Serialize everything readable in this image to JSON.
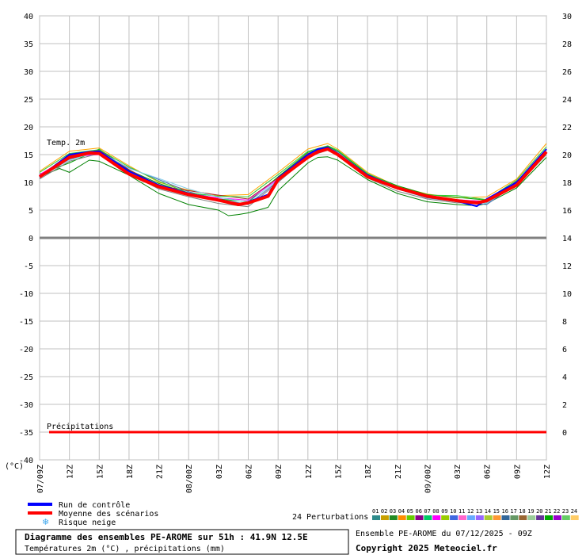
{
  "chart_data": {
    "type": "line",
    "y_left": {
      "min": -40,
      "max": 40,
      "step": 5
    },
    "y_right": {
      "min": 0,
      "max": 30,
      "step": 2,
      "note": "precipitation scale (mm)"
    },
    "y_unit_label": "(°C)",
    "grid": true,
    "x_ticks": [
      "07/09Z",
      "12Z",
      "15Z",
      "18Z",
      "21Z",
      "08/00Z",
      "03Z",
      "06Z",
      "09Z",
      "12Z",
      "15Z",
      "18Z",
      "21Z",
      "09/00Z",
      "03Z",
      "06Z",
      "09Z",
      "12Z"
    ],
    "x_hours": [
      0,
      3,
      6,
      9,
      12,
      15,
      18,
      21,
      24,
      27,
      30,
      33,
      36,
      39,
      42,
      45,
      48,
      51
    ],
    "temp_label": "Temp. 2m",
    "precip_label": "Précipitations",
    "series": [
      {
        "name": "Moyenne des scénarios",
        "color": "#ff0000",
        "x": [
          0,
          3,
          5,
          6,
          9,
          12,
          15,
          18,
          20,
          21,
          23,
          24,
          27,
          28,
          29,
          30,
          33,
          36,
          39,
          42,
          44,
          45,
          48,
          51
        ],
        "y": [
          11,
          14.5,
          15.3,
          15.2,
          11.5,
          9.2,
          7.8,
          6.8,
          6.0,
          6.3,
          7.5,
          10.5,
          14.5,
          15.5,
          16.0,
          15.0,
          11.0,
          9.0,
          7.5,
          6.7,
          6.3,
          6.7,
          9.5,
          15.5
        ]
      },
      {
        "name": "Run de contrôle",
        "color": "#0000ff",
        "x": [
          0,
          3,
          5,
          6,
          9,
          12,
          15,
          18,
          20,
          21,
          23,
          24,
          27,
          28,
          29,
          30,
          33,
          36,
          39,
          42,
          44,
          45,
          48,
          51
        ],
        "y": [
          11,
          15.0,
          15.5,
          15.6,
          12.0,
          9.5,
          8.0,
          6.9,
          6.0,
          6.5,
          7.8,
          10.8,
          15.0,
          16.0,
          16.3,
          15.2,
          11.3,
          9.1,
          7.6,
          6.6,
          5.7,
          7.0,
          10.0,
          16.0
        ]
      },
      {
        "name": "",
        "color": "#008000",
        "x": [
          0,
          2,
          3,
          5,
          6,
          9,
          12,
          15,
          18,
          19,
          20,
          21,
          23,
          24,
          27,
          28,
          29,
          30,
          33,
          36,
          39,
          42,
          44,
          45,
          48,
          51
        ],
        "y": [
          11,
          12.5,
          11.8,
          14.0,
          13.8,
          11.3,
          8.0,
          6.0,
          5.0,
          4.0,
          4.2,
          4.5,
          5.5,
          8.5,
          13.5,
          14.5,
          14.6,
          14.0,
          10.5,
          8.0,
          6.5,
          6.0,
          5.8,
          6.2,
          9.0,
          14.5
        ]
      },
      {
        "name": "",
        "color": "#ffa500",
        "x": [
          0,
          3,
          6,
          9,
          12,
          15,
          18,
          21,
          24,
          27,
          29,
          30,
          33,
          36,
          39,
          42,
          45,
          48,
          51
        ],
        "y": [
          12,
          15.6,
          16.2,
          13.0,
          10.0,
          8.6,
          7.6,
          7.8,
          11.8,
          16.0,
          17.0,
          16.0,
          11.8,
          9.3,
          7.9,
          7.2,
          7.4,
          10.6,
          17.0
        ]
      },
      {
        "name": "",
        "color": "#00a000",
        "x": [
          0,
          3,
          6,
          9,
          12,
          15,
          18,
          21,
          24,
          27,
          29,
          30,
          33,
          36,
          39,
          42,
          45,
          48,
          51
        ],
        "y": [
          11.5,
          13.5,
          16.0,
          12.2,
          9.8,
          8.0,
          7.0,
          6.5,
          11.0,
          15.4,
          16.5,
          15.6,
          11.5,
          9.4,
          7.8,
          7.3,
          6.8,
          10.0,
          16.0
        ]
      },
      {
        "name": "",
        "color": "#4a6fb5",
        "x": [
          0,
          3,
          6,
          9,
          12,
          15,
          18,
          21,
          24,
          27,
          29,
          30,
          33,
          36,
          39,
          42,
          45,
          48,
          51
        ],
        "y": [
          10.8,
          14.2,
          15.4,
          12.6,
          10.5,
          8.3,
          7.0,
          6.0,
          10.2,
          14.8,
          16.2,
          15.5,
          11.2,
          8.8,
          7.2,
          6.5,
          6.0,
          9.8,
          15.8
        ]
      },
      {
        "name": "",
        "color": "#a52a2a",
        "x": [
          0,
          3,
          6,
          9,
          12,
          15,
          18,
          21,
          24,
          27,
          29,
          30,
          33,
          36,
          39,
          42,
          45,
          48,
          51
        ],
        "y": [
          11.2,
          14.8,
          15.8,
          12.3,
          9.4,
          8.5,
          7.7,
          7.0,
          10.8,
          15.2,
          16.4,
          15.0,
          11.4,
          9.0,
          7.5,
          6.8,
          6.6,
          10.2,
          15.4
        ]
      },
      {
        "name": "",
        "color": "#ff00ff",
        "x": [
          0,
          3,
          6,
          9,
          12,
          15,
          18,
          21,
          24,
          27,
          29,
          30,
          33,
          36,
          39,
          42,
          45,
          48,
          51
        ],
        "y": [
          11.4,
          14.6,
          15.0,
          11.8,
          9.0,
          7.9,
          7.2,
          6.8,
          10.6,
          15.0,
          16.0,
          15.3,
          11.0,
          8.9,
          7.3,
          6.9,
          6.5,
          9.6,
          15.6
        ]
      },
      {
        "name": "",
        "color": "#808080",
        "x": [
          0,
          3,
          6,
          9,
          12,
          15,
          18,
          21,
          24,
          27,
          29,
          30,
          33,
          36,
          39,
          42,
          45,
          48,
          51
        ],
        "y": [
          10.6,
          13.8,
          15.2,
          11.6,
          8.8,
          7.4,
          6.2,
          5.6,
          10.0,
          14.6,
          15.8,
          14.8,
          10.8,
          8.4,
          7.0,
          6.3,
          6.4,
          9.4,
          15.0
        ]
      },
      {
        "name": "",
        "color": "#32cd32",
        "x": [
          0,
          3,
          6,
          9,
          12,
          15,
          18,
          21,
          24,
          27,
          29,
          30,
          33,
          36,
          39,
          42,
          45,
          48,
          51
        ],
        "y": [
          11.8,
          15.2,
          15.9,
          12.8,
          10.2,
          8.1,
          7.5,
          7.4,
          11.4,
          15.6,
          16.6,
          15.8,
          11.6,
          9.2,
          7.7,
          7.6,
          6.9,
          10.4,
          16.4
        ]
      },
      {
        "name": "",
        "color": "#87ceeb",
        "x": [
          0,
          3,
          6,
          9,
          12,
          15,
          18,
          21,
          24,
          27,
          29,
          30,
          33,
          36,
          39,
          42,
          45,
          48,
          51
        ],
        "y": [
          11.0,
          14.0,
          15.6,
          12.5,
          10.7,
          8.8,
          7.3,
          6.4,
          10.4,
          15.1,
          16.1,
          15.4,
          11.3,
          9.0,
          7.4,
          6.7,
          6.2,
          9.9,
          15.7
        ]
      }
    ],
    "precip_series": {
      "name": "Précipitations",
      "color": "#ff0000",
      "x": [
        0,
        51
      ],
      "y": [
        0,
        0
      ]
    }
  },
  "legend": {
    "control_run": "Run de contrôle",
    "mean": "Moyenne des scénarios",
    "snow_risk": "Risque neige",
    "snow_color": "#44aaee",
    "control_color": "#0000ff",
    "mean_color": "#ff0000"
  },
  "perturbations": {
    "label": "24 Perturbations",
    "numbers": [
      "01",
      "02",
      "03",
      "04",
      "05",
      "06",
      "07",
      "08",
      "09",
      "10",
      "11",
      "12",
      "13",
      "14",
      "15",
      "16",
      "17",
      "18",
      "19",
      "20",
      "21",
      "22",
      "23",
      "24"
    ],
    "colors": [
      "#2e8b8b",
      "#c8a000",
      "#228b22",
      "#ff8c00",
      "#66cc00",
      "#8b008b",
      "#00cc66",
      "#ff00ff",
      "#99cc00",
      "#4169e1",
      "#ff66cc",
      "#66aaff",
      "#9966ff",
      "#aacc33",
      "#ff9933",
      "#336699",
      "#669966",
      "#996633",
      "#99cc99",
      "#663399",
      "#00aa00",
      "#9900cc",
      "#66cc66",
      "#ffcc66"
    ]
  },
  "footer": {
    "title": "Diagramme des ensembles PE-AROME sur 51h : 41.9N 12.5E",
    "subtitle": "Températures 2m (°C) , précipitations (mm)",
    "run_info": "Ensemble PE-AROME du 07/12/2025 - 09Z",
    "copyright": "Copyright 2025 Meteociel.fr"
  }
}
